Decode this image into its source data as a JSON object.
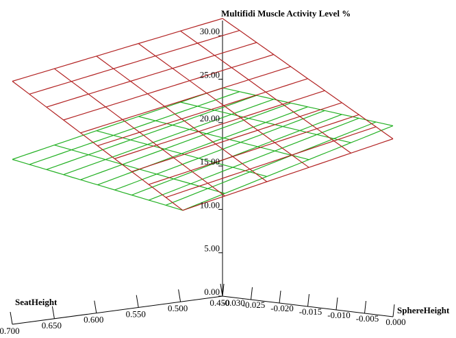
{
  "chart_data": {
    "type": "surface",
    "title": "Multifidi Muscle Activity Level %",
    "axes": {
      "z": {
        "label": "Multifidi Muscle Activity Level %",
        "ticks": [
          0,
          5,
          10,
          15,
          20,
          25,
          30
        ],
        "tick_labels": [
          "0.00",
          "5.00",
          "10.00",
          "15.00",
          "20.00",
          "25.00",
          "30.00"
        ],
        "range": [
          0,
          30
        ]
      },
      "seat": {
        "label": "SeatHeight",
        "ticks": [
          0.7,
          0.65,
          0.6,
          0.55,
          0.5,
          0.45
        ],
        "tick_labels": [
          "0.700",
          "0.650",
          "0.600",
          "0.550",
          "0.500",
          "0.450"
        ],
        "range": [
          0.45,
          0.7
        ]
      },
      "sphere": {
        "label": "SphereHeight",
        "ticks": [
          -0.03,
          -0.025,
          -0.02,
          -0.015,
          -0.01,
          -0.005,
          0.0
        ],
        "tick_labels": [
          "-0.030",
          "-0.025",
          "-0.020",
          "-0.015",
          "-0.010",
          "-0.005",
          "0.000"
        ],
        "range": [
          -0.03,
          0.0
        ]
      }
    },
    "surfaces": [
      {
        "color": "#b22222",
        "corners": {
          "seat_0.70_sphere_-0.030": 28.0,
          "seat_0.45_sphere_-0.030": 32.0,
          "seat_0.45_sphere_0.000": 20.5,
          "seat_0.70_sphere_0.000": 15.5
        }
      },
      {
        "color": "#22b022",
        "corners": {
          "seat_0.70_sphere_-0.030": 19.0,
          "seat_0.45_sphere_-0.030": 24.0,
          "seat_0.45_sphere_0.000": 22.0,
          "seat_0.70_sphere_0.000": 15.5
        }
      }
    ]
  }
}
